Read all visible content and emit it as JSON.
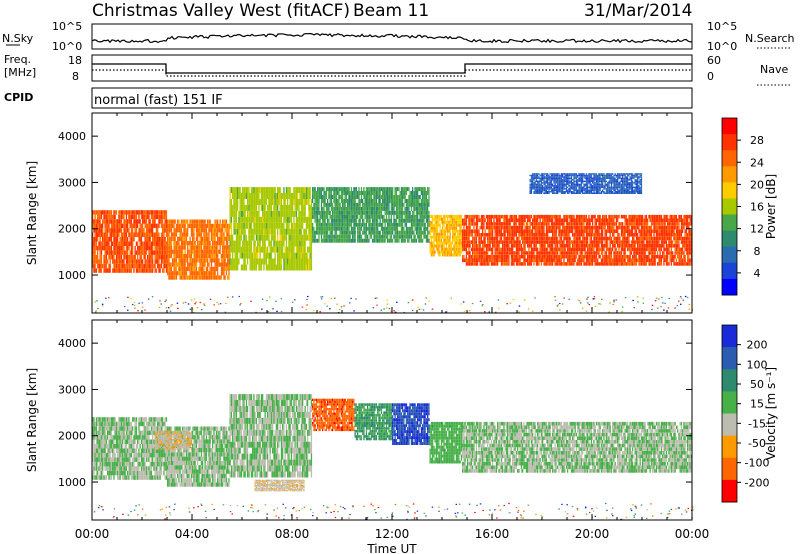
{
  "header": {
    "title": "Christmas Valley West (fitACF)",
    "beam": "Beam 11",
    "date": "31/Mar/2014"
  },
  "noise_panel": {
    "left_label": "N.Sky",
    "right_label": "N.Search",
    "left_ticks": [
      "10^5",
      "10^0"
    ],
    "right_ticks": [
      "10^5",
      "10^0"
    ]
  },
  "freq_panel": {
    "left_label_1": "Freq.",
    "left_label_2": "[MHz]",
    "right_label": "Nave",
    "left_ticks": [
      "18",
      "8"
    ],
    "right_ticks": [
      "60",
      "0"
    ]
  },
  "cpid": {
    "label": "CPID",
    "text": "normal (fast) 151 IF"
  },
  "x_axis": {
    "label": "Time UT",
    "ticks": [
      "00:00",
      "04:00",
      "08:00",
      "12:00",
      "16:00",
      "20:00",
      "00:00"
    ]
  },
  "chart_data": [
    {
      "type": "heatmap",
      "panel": "power",
      "ylabel": "Slant Range [km]",
      "ylim": [
        180,
        4500
      ],
      "y_ticks": [
        1000,
        2000,
        3000,
        4000
      ],
      "xlabel": "Time UT",
      "x_range_hours": [
        0,
        24
      ],
      "colorbar": {
        "label": "Power [dB]",
        "ticks": [
          "28",
          "24",
          "20",
          "16",
          "12",
          "8",
          "4"
        ],
        "colors": [
          "#ff0000",
          "#ff3300",
          "#ff6600",
          "#ff9900",
          "#ffcc00",
          "#a8c800",
          "#48a848",
          "#2e8a6e",
          "#2a6cb0",
          "#1a44d8",
          "#0000ff"
        ]
      },
      "regions": [
        {
          "x": [
            0.0,
            3.0
          ],
          "y": [
            1050,
            2400
          ],
          "value": 26
        },
        {
          "x": [
            3.0,
            5.5
          ],
          "y": [
            900,
            2200
          ],
          "value": 24
        },
        {
          "x": [
            5.5,
            8.8
          ],
          "y": [
            1100,
            2900
          ],
          "value": 16
        },
        {
          "x": [
            8.8,
            13.5
          ],
          "y": [
            1700,
            2900
          ],
          "value": 12
        },
        {
          "x": [
            13.5,
            14.8
          ],
          "y": [
            1400,
            2300
          ],
          "value": 20
        },
        {
          "x": [
            14.8,
            24.0
          ],
          "y": [
            1200,
            2300
          ],
          "value": 27
        },
        {
          "x": [
            17.5,
            22.0
          ],
          "y": [
            2750,
            3200
          ],
          "value": 6
        }
      ]
    },
    {
      "type": "heatmap",
      "panel": "velocity",
      "ylabel": "Slant Range [km]",
      "ylim": [
        180,
        4500
      ],
      "y_ticks": [
        1000,
        2000,
        3000,
        4000
      ],
      "xlabel": "Time UT",
      "x_range_hours": [
        0,
        24
      ],
      "colorbar": {
        "label": "Velocity [m s⁻¹]",
        "ticks": [
          "200",
          "100",
          "50",
          "15",
          "-15",
          "-50",
          "-100",
          "-200"
        ],
        "colors": [
          "#1a2ad8",
          "#2a5cb0",
          "#2e8a6e",
          "#48b048",
          "#bcbcb0",
          "#ff9900",
          "#ff6600",
          "#ff0000"
        ]
      },
      "regions": [
        {
          "x": [
            0.0,
            3.0
          ],
          "y": [
            1050,
            2400
          ],
          "value": 0
        },
        {
          "x": [
            3.0,
            5.5
          ],
          "y": [
            900,
            2200
          ],
          "value": 0
        },
        {
          "x": [
            5.5,
            8.8
          ],
          "y": [
            1100,
            2900
          ],
          "value": 0
        },
        {
          "x": [
            8.8,
            10.5
          ],
          "y": [
            2100,
            2800
          ],
          "value": -200
        },
        {
          "x": [
            10.5,
            12.0
          ],
          "y": [
            1900,
            2700
          ],
          "value": 80
        },
        {
          "x": [
            12.0,
            13.5
          ],
          "y": [
            1800,
            2700
          ],
          "value": 220
        },
        {
          "x": [
            13.5,
            14.8
          ],
          "y": [
            1400,
            2300
          ],
          "value": 40
        },
        {
          "x": [
            14.8,
            24.0
          ],
          "y": [
            1200,
            2300
          ],
          "value": 0
        },
        {
          "x": [
            6.5,
            8.5
          ],
          "y": [
            800,
            1050
          ],
          "value": -60
        },
        {
          "x": [
            2.5,
            4.0
          ],
          "y": [
            1700,
            2100
          ],
          "value": -60
        }
      ]
    }
  ]
}
